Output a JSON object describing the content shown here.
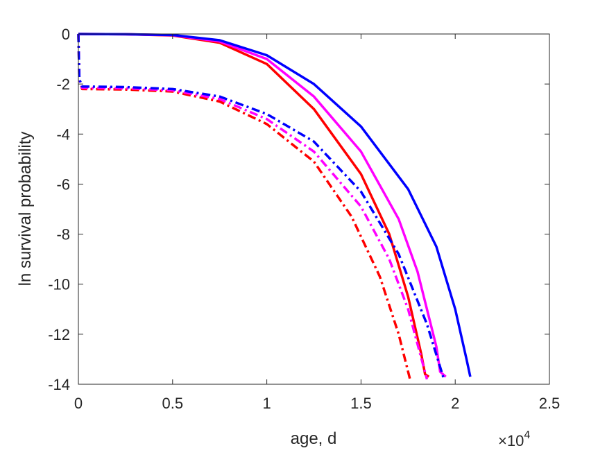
{
  "chart_data": {
    "type": "line",
    "xlabel": "age, d",
    "ylabel": "ln survival probability",
    "x_exponent_base": "×10",
    "x_exponent_power": "4",
    "xlim": [
      0,
      2.5
    ],
    "ylim": [
      -14,
      0
    ],
    "xticks": [
      0,
      0.5,
      1,
      1.5,
      2,
      2.5
    ],
    "xtick_labels": [
      "0",
      "0.5",
      "1",
      "1.5",
      "2",
      "2.5"
    ],
    "yticks": [
      0,
      -2,
      -4,
      -6,
      -8,
      -10,
      -12,
      -14
    ],
    "ytick_labels": [
      "0",
      "-2",
      "-4",
      "-6",
      "-8",
      "-10",
      "-12",
      "-14"
    ],
    "grid": false,
    "box": true,
    "series": [
      {
        "color": "#ff0000",
        "style": "solid",
        "points": [
          [
            0,
            0
          ],
          [
            0.25,
            -0.01
          ],
          [
            0.5,
            -0.06
          ],
          [
            0.75,
            -0.35
          ],
          [
            1.0,
            -1.2
          ],
          [
            1.25,
            -3.0
          ],
          [
            1.5,
            -5.6
          ],
          [
            1.65,
            -8.0
          ],
          [
            1.75,
            -10.5
          ],
          [
            1.82,
            -12.8
          ],
          [
            1.84,
            -13.6
          ],
          [
            1.86,
            -13.7
          ]
        ]
      },
      {
        "color": "#ff00ff",
        "style": "solid",
        "points": [
          [
            0,
            0
          ],
          [
            0.25,
            -0.01
          ],
          [
            0.5,
            -0.05
          ],
          [
            0.75,
            -0.3
          ],
          [
            1.0,
            -1.0
          ],
          [
            1.25,
            -2.5
          ],
          [
            1.5,
            -4.7
          ],
          [
            1.7,
            -7.4
          ],
          [
            1.8,
            -9.5
          ],
          [
            1.9,
            -12.5
          ],
          [
            1.92,
            -13.5
          ],
          [
            1.95,
            -13.7
          ]
        ]
      },
      {
        "color": "#0000ff",
        "style": "solid",
        "points": [
          [
            0,
            0
          ],
          [
            0.25,
            -0.01
          ],
          [
            0.5,
            -0.04
          ],
          [
            0.75,
            -0.25
          ],
          [
            1.0,
            -0.85
          ],
          [
            1.25,
            -2.0
          ],
          [
            1.5,
            -3.7
          ],
          [
            1.75,
            -6.2
          ],
          [
            1.9,
            -8.5
          ],
          [
            2.0,
            -11.0
          ],
          [
            2.06,
            -13.0
          ],
          [
            2.08,
            -13.7
          ]
        ]
      },
      {
        "color": "#ff0000",
        "style": "dashdot",
        "points": [
          [
            0,
            0
          ],
          [
            0.005,
            -1.8
          ],
          [
            0.02,
            -2.2
          ],
          [
            0.25,
            -2.22
          ],
          [
            0.5,
            -2.3
          ],
          [
            0.75,
            -2.7
          ],
          [
            1.0,
            -3.6
          ],
          [
            1.25,
            -5.1
          ],
          [
            1.45,
            -7.3
          ],
          [
            1.6,
            -9.7
          ],
          [
            1.7,
            -12.0
          ],
          [
            1.76,
            -13.8
          ]
        ]
      },
      {
        "color": "#ff00ff",
        "style": "dashdot",
        "points": [
          [
            0,
            0
          ],
          [
            0.005,
            -1.8
          ],
          [
            0.02,
            -2.15
          ],
          [
            0.25,
            -2.17
          ],
          [
            0.5,
            -2.25
          ],
          [
            0.75,
            -2.6
          ],
          [
            1.0,
            -3.4
          ],
          [
            1.25,
            -4.7
          ],
          [
            1.5,
            -6.9
          ],
          [
            1.65,
            -9.0
          ],
          [
            1.75,
            -11.0
          ],
          [
            1.85,
            -13.8
          ]
        ]
      },
      {
        "color": "#0000ff",
        "style": "dashdot",
        "points": [
          [
            0,
            0
          ],
          [
            0.005,
            -1.8
          ],
          [
            0.02,
            -2.1
          ],
          [
            0.25,
            -2.12
          ],
          [
            0.5,
            -2.2
          ],
          [
            0.75,
            -2.5
          ],
          [
            1.0,
            -3.2
          ],
          [
            1.25,
            -4.3
          ],
          [
            1.5,
            -6.3
          ],
          [
            1.7,
            -8.8
          ],
          [
            1.85,
            -11.6
          ],
          [
            1.94,
            -13.8
          ]
        ]
      }
    ]
  }
}
